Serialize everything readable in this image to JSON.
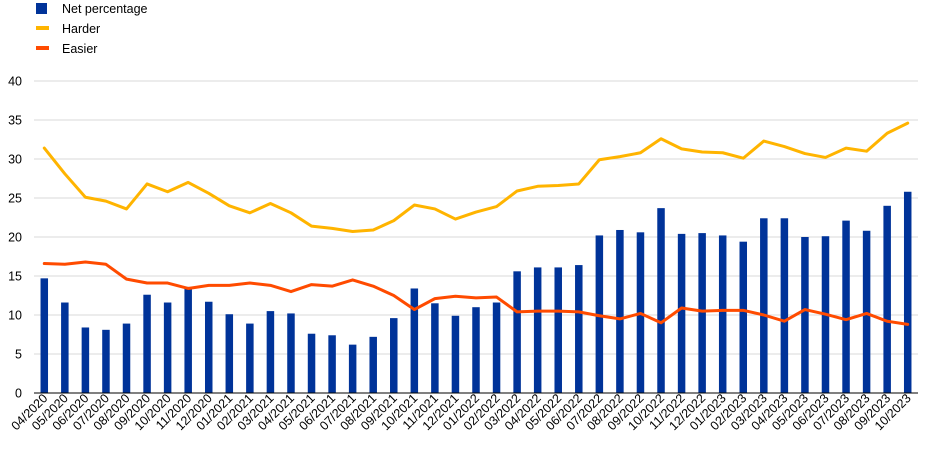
{
  "chart_data": {
    "type": "bar+line",
    "title": "",
    "xlabel": "",
    "ylabel": "",
    "ylim": [
      0,
      40
    ],
    "yticks": [
      0,
      5,
      10,
      15,
      20,
      25,
      30,
      35,
      40
    ],
    "grid": true,
    "legend_position": "top-left",
    "categories": [
      "04/2020",
      "05/2020",
      "06/2020",
      "07/2020",
      "08/2020",
      "09/2020",
      "10/2020",
      "11/2020",
      "12/2020",
      "01/2021",
      "02/2021",
      "03/2021",
      "04/2021",
      "05/2021",
      "06/2021",
      "07/2021",
      "08/2021",
      "09/2021",
      "10/2021",
      "11/2021",
      "12/2021",
      "01/2022",
      "02/2022",
      "03/2022",
      "04/2022",
      "05/2022",
      "06/2022",
      "07/2022",
      "08/2022",
      "09/2022",
      "10/2022",
      "11/2022",
      "12/2022",
      "01/2023",
      "02/2023",
      "03/2023",
      "04/2023",
      "05/2023",
      "06/2023",
      "07/2023",
      "08/2023",
      "09/2023",
      "10/2023"
    ],
    "series": [
      {
        "name": "Net percentage",
        "kind": "bar",
        "color": "#003399",
        "values": [
          14.7,
          11.6,
          8.4,
          8.1,
          8.9,
          12.6,
          11.6,
          13.6,
          11.7,
          10.1,
          8.9,
          10.5,
          10.2,
          7.6,
          7.4,
          6.2,
          7.2,
          9.6,
          13.4,
          11.5,
          9.9,
          11.0,
          11.6,
          15.6,
          16.1,
          16.1,
          16.4,
          20.2,
          20.9,
          20.6,
          23.7,
          20.4,
          20.5,
          20.2,
          19.4,
          22.4,
          22.4,
          20.0,
          20.1,
          22.1,
          20.8,
          24.0,
          25.8
        ]
      },
      {
        "name": "Harder",
        "kind": "line",
        "color": "#ffb400",
        "values": [
          31.4,
          28.1,
          25.1,
          24.6,
          23.6,
          26.8,
          25.8,
          27.0,
          25.6,
          24.0,
          23.1,
          24.3,
          23.1,
          21.4,
          21.1,
          20.7,
          20.9,
          22.1,
          24.1,
          23.6,
          22.3,
          23.2,
          23.9,
          25.9,
          26.5,
          26.6,
          26.8,
          29.9,
          30.3,
          30.8,
          32.6,
          31.3,
          30.9,
          30.8,
          30.1,
          32.3,
          31.6,
          30.7,
          30.2,
          31.4,
          31.0,
          33.3,
          34.6
        ]
      },
      {
        "name": "Easier",
        "kind": "line",
        "color": "#ff4b00",
        "values": [
          16.6,
          16.5,
          16.8,
          16.5,
          14.6,
          14.1,
          14.1,
          13.4,
          13.8,
          13.8,
          14.1,
          13.8,
          13.0,
          13.9,
          13.7,
          14.5,
          13.7,
          12.5,
          10.7,
          12.1,
          12.4,
          12.2,
          12.3,
          10.4,
          10.5,
          10.5,
          10.4,
          9.9,
          9.5,
          10.2,
          9.0,
          10.9,
          10.5,
          10.6,
          10.6,
          10.0,
          9.2,
          10.7,
          10.1,
          9.4,
          10.2,
          9.2,
          8.8
        ]
      }
    ]
  }
}
